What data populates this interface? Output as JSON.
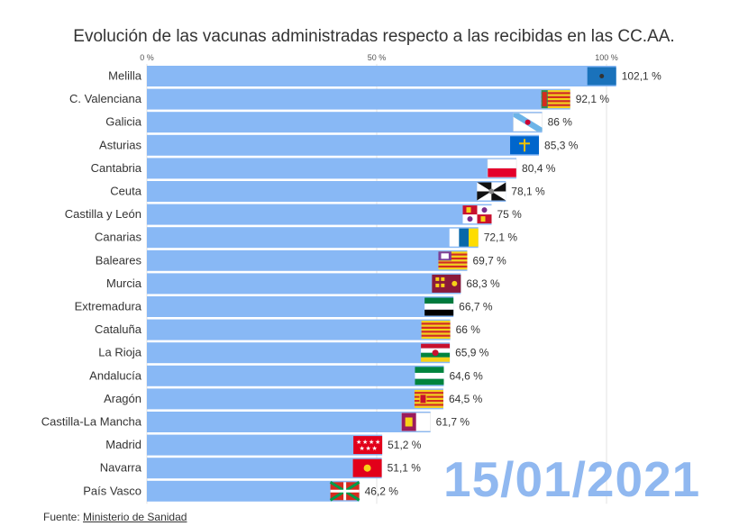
{
  "title": "Evolución de las vacunas administradas respecto a las recibidas en las CC.AA.",
  "date": "15/01/2021",
  "source": {
    "label": "Fuente:",
    "link_text": "Ministerio de Sanidad"
  },
  "colors": {
    "bar": "#88b8f5",
    "grid": "#e3e3e3",
    "date": "#90b8f0"
  },
  "chart_data": {
    "type": "bar",
    "orientation": "horizontal",
    "title": "Evolución de las vacunas administradas respecto a las recibidas en las CC.AA.",
    "xlim": [
      0,
      100
    ],
    "x_ticks": [
      {
        "value": 0,
        "label": "0 %"
      },
      {
        "value": 50,
        "label": "50 %"
      },
      {
        "value": 100,
        "label": "100 %"
      }
    ],
    "categories": [
      "Melilla",
      "C. Valenciana",
      "Galicia",
      "Asturias",
      "Cantabria",
      "Ceuta",
      "Castilla y León",
      "Canarias",
      "Baleares",
      "Murcia",
      "Extremadura",
      "Cataluña",
      "La Rioja",
      "Andalucía",
      "Aragón",
      "Castilla-La Mancha",
      "Madrid",
      "Navarra",
      "País Vasco"
    ],
    "values": [
      102.1,
      92.1,
      86,
      85.3,
      80.4,
      78.1,
      75,
      72.1,
      69.7,
      68.3,
      66.7,
      66,
      65.9,
      64.6,
      64.5,
      61.7,
      51.2,
      51.1,
      46.2
    ],
    "value_labels": [
      "102,1 %",
      "92,1 %",
      "86 %",
      "85,3 %",
      "80,4 %",
      "78,1 %",
      "75 %",
      "72,1 %",
      "69,7 %",
      "68,3 %",
      "66,7 %",
      "66 %",
      "65,9 %",
      "64,6 %",
      "64,5 %",
      "61,7 %",
      "51,2 %",
      "51,1 %",
      "46,2 %"
    ],
    "flags": [
      "flag-melilla",
      "flag-valencia",
      "flag-galicia",
      "flag-asturias",
      "flag-cantabria",
      "flag-ceuta",
      "flag-castilla-leon",
      "flag-canarias",
      "flag-baleares",
      "flag-murcia",
      "flag-extremadura",
      "flag-cataluna",
      "flag-la-rioja",
      "flag-andalucia",
      "flag-aragon",
      "flag-castilla-la-mancha",
      "flag-madrid",
      "flag-navarra",
      "flag-pais-vasco"
    ],
    "grid": true
  }
}
